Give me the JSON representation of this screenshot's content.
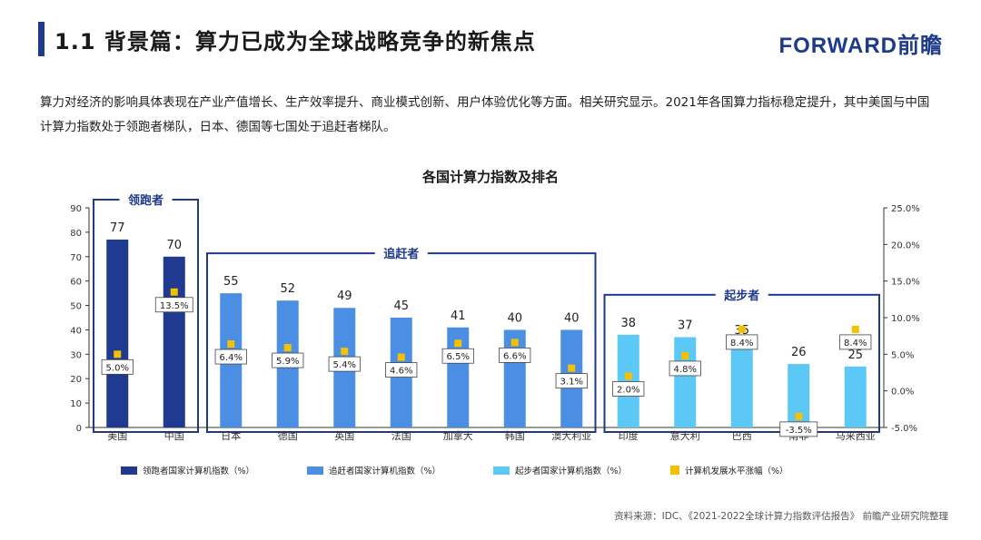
{
  "header": {
    "title": "1.1 背景篇：算力已成为全球战略竞争的新焦点",
    "logo": "FORWARD前瞻"
  },
  "intro": "算力对经济的影响具体表现在产业产值增长、生产效率提升、商业模式创新、用户体验优化等方面。相关研究显示。2021年各国算力指标稳定提升，其中美国与中国计算力指数处于领跑者梯队，日本、德国等七国处于追赶者梯队。",
  "source": "资料来源：IDC、《2021-2022全球计算力指数评估报告》 前瞻产业研究院整理",
  "colors": {
    "leader": "#1f3a8f",
    "follower": "#4a8fe3",
    "starter": "#5bc8f5",
    "growth": "#f5c000",
    "accent": "#1e3a8a"
  },
  "chart_data": {
    "type": "bar",
    "title": "各国计算力指数及排名",
    "categories": [
      "美国",
      "中国",
      "日本",
      "德国",
      "英国",
      "法国",
      "加拿大",
      "韩国",
      "澳大利亚",
      "印度",
      "意大利",
      "巴西",
      "南非",
      "马来西亚"
    ],
    "series": [
      {
        "name": "领跑者国家计算机指数（%）",
        "values": [
          77,
          70,
          null,
          null,
          null,
          null,
          null,
          null,
          null,
          null,
          null,
          null,
          null,
          null
        ],
        "color": "#1f3a8f"
      },
      {
        "name": "追赶者国家计算机指数（%）",
        "values": [
          null,
          null,
          55,
          52,
          49,
          45,
          41,
          40,
          40,
          null,
          null,
          null,
          null,
          null
        ],
        "color": "#4a8fe3"
      },
      {
        "name": "起步者国家计算机指数（%）",
        "values": [
          null,
          null,
          null,
          null,
          null,
          null,
          null,
          null,
          null,
          38,
          37,
          35,
          26,
          25
        ],
        "color": "#5bc8f5"
      },
      {
        "name": "计算机发展水平涨幅（%）",
        "values": [
          5.0,
          13.5,
          6.4,
          5.9,
          5.4,
          4.6,
          6.5,
          6.6,
          3.1,
          2.0,
          4.8,
          8.4,
          -3.5,
          8.4
        ],
        "color": "#f5c000",
        "axis": "right"
      }
    ],
    "value_labels": [
      "77",
      "70",
      "55",
      "52",
      "49",
      "45",
      "41",
      "40",
      "40",
      "38",
      "37",
      "35",
      "26",
      "25"
    ],
    "growth_labels": [
      "5.0%",
      "13.5%",
      "6.4%",
      "5.9%",
      "5.4%",
      "4.6%",
      "6.5%",
      "6.6%",
      "3.1%",
      "2.0%",
      "4.8%",
      "8.4%",
      "-3.5%",
      "8.4%"
    ],
    "groups": [
      {
        "label": "领跑者",
        "start": 0,
        "end": 1
      },
      {
        "label": "追赶者",
        "start": 2,
        "end": 8
      },
      {
        "label": "起步者",
        "start": 9,
        "end": 13
      }
    ],
    "ylim": [
      0,
      90
    ],
    "yticks": [
      "0",
      "10",
      "20",
      "30",
      "40",
      "50",
      "60",
      "70",
      "80",
      "90"
    ],
    "y2lim": [
      -5,
      25
    ],
    "y2ticks": [
      "-5.0%",
      "0.0%",
      "5.0%",
      "10.0%",
      "15.0%",
      "20.0%",
      "25.0%"
    ],
    "legend_position": "bottom"
  }
}
